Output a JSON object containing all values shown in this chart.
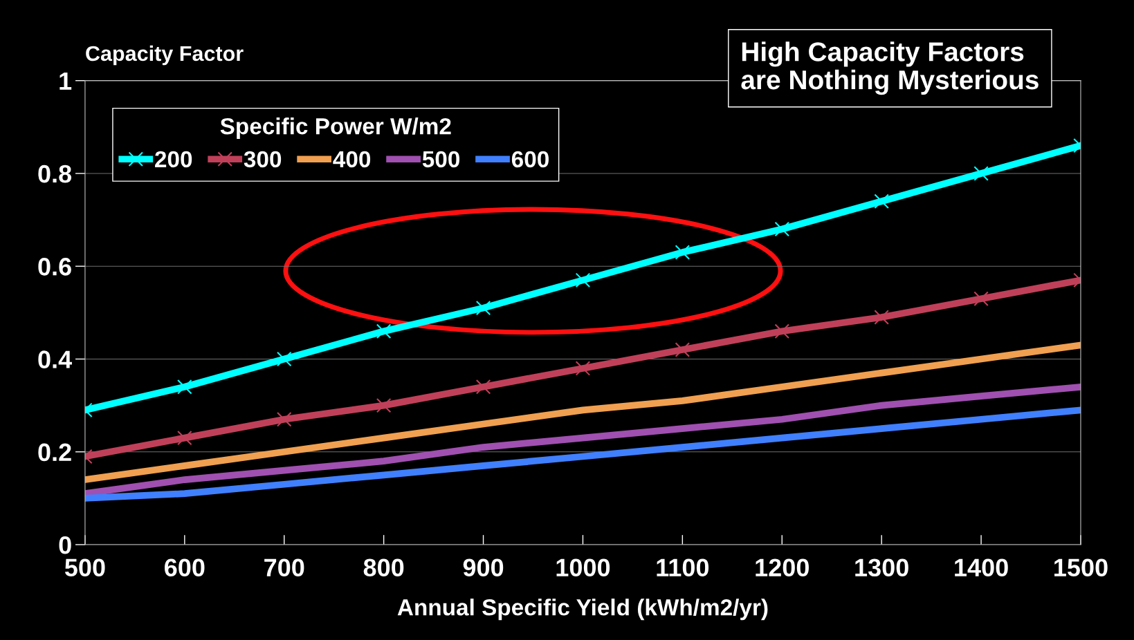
{
  "chart_data": {
    "type": "line",
    "title": "High Capacity Factors\nare Nothing Mysterious",
    "xlabel": "Annual Specific Yield (kWh/m2/yr)",
    "ylabel": "Capacity Factor",
    "legend_title": "Specific Power W/m2",
    "x": [
      500,
      600,
      700,
      800,
      900,
      1000,
      1100,
      1200,
      1300,
      1400,
      1500
    ],
    "series": [
      {
        "name": "200",
        "color": "#00ffff",
        "marker": "cross",
        "values": [
          0.29,
          0.34,
          0.4,
          0.46,
          0.51,
          0.57,
          0.63,
          0.68,
          0.74,
          0.8,
          0.86
        ]
      },
      {
        "name": "300",
        "color": "#c0405a",
        "marker": "cross",
        "values": [
          0.19,
          0.23,
          0.27,
          0.3,
          0.34,
          0.38,
          0.42,
          0.46,
          0.49,
          0.53,
          0.57
        ]
      },
      {
        "name": "400",
        "color": "#f0a050",
        "values": [
          0.14,
          0.17,
          0.2,
          0.23,
          0.26,
          0.29,
          0.31,
          0.34,
          0.37,
          0.4,
          0.43
        ]
      },
      {
        "name": "500",
        "color": "#a050b0",
        "values": [
          0.11,
          0.14,
          0.16,
          0.18,
          0.21,
          0.23,
          0.25,
          0.27,
          0.3,
          0.32,
          0.34
        ]
      },
      {
        "name": "600",
        "color": "#4080ff",
        "values": [
          0.1,
          0.11,
          0.13,
          0.15,
          0.17,
          0.19,
          0.21,
          0.23,
          0.25,
          0.27,
          0.29
        ]
      }
    ],
    "xlim": [
      500,
      1500
    ],
    "xticks": [
      500,
      600,
      700,
      800,
      900,
      1000,
      1100,
      1200,
      1300,
      1400,
      1500
    ],
    "ylim": [
      0,
      1
    ],
    "yticks": [
      0,
      0.2,
      0.4,
      0.6,
      0.8,
      1
    ],
    "grid": "y",
    "legend": "top left"
  }
}
